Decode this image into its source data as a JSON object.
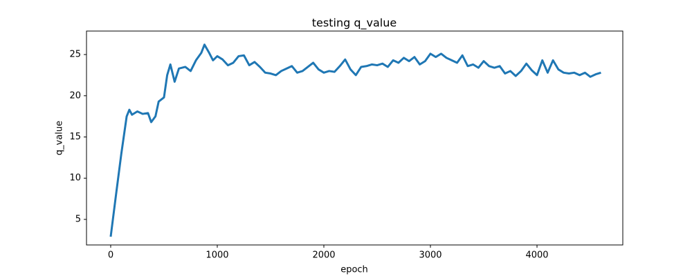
{
  "chart_data": {
    "type": "line",
    "title": "testing q_value",
    "x_label": "epoch",
    "y_label": "q_value",
    "x": [
      0,
      50,
      100,
      150,
      175,
      200,
      250,
      300,
      350,
      380,
      420,
      450,
      500,
      530,
      560,
      600,
      640,
      700,
      750,
      800,
      850,
      880,
      920,
      960,
      1000,
      1050,
      1100,
      1150,
      1200,
      1250,
      1300,
      1350,
      1400,
      1450,
      1500,
      1550,
      1600,
      1650,
      1700,
      1750,
      1800,
      1850,
      1900,
      1950,
      2000,
      2050,
      2100,
      2150,
      2200,
      2250,
      2300,
      2350,
      2400,
      2450,
      2500,
      2550,
      2600,
      2650,
      2700,
      2750,
      2800,
      2850,
      2900,
      2950,
      3000,
      3050,
      3100,
      3150,
      3200,
      3250,
      3300,
      3350,
      3400,
      3450,
      3500,
      3550,
      3600,
      3650,
      3700,
      3750,
      3800,
      3850,
      3900,
      3950,
      4000,
      4050,
      4100,
      4150,
      4200,
      4250,
      4300,
      4350,
      4400,
      4450,
      4500,
      4550,
      4600
    ],
    "series": [
      {
        "name": "q_value",
        "color": "#1f77b4",
        "values": [
          2.9,
          8,
          13,
          17.5,
          18.3,
          17.7,
          18.1,
          17.8,
          17.9,
          16.8,
          17.5,
          19.3,
          19.8,
          22.5,
          23.8,
          21.7,
          23.3,
          23.5,
          23.0,
          24.3,
          25.2,
          26.2,
          25.3,
          24.3,
          24.8,
          24.4,
          23.7,
          24.0,
          24.8,
          24.9,
          23.7,
          24.1,
          23.5,
          22.8,
          22.7,
          22.5,
          23.0,
          23.3,
          23.6,
          22.8,
          23.0,
          23.5,
          24.0,
          23.2,
          22.8,
          23.0,
          22.9,
          23.6,
          24.4,
          23.2,
          22.5,
          23.5,
          23.6,
          23.8,
          23.7,
          23.9,
          23.5,
          24.3,
          24.0,
          24.6,
          24.2,
          24.7,
          23.8,
          24.2,
          25.1,
          24.7,
          25.1,
          24.6,
          24.3,
          24.0,
          24.9,
          23.6,
          23.8,
          23.4,
          24.2,
          23.6,
          23.4,
          23.6,
          22.7,
          23.0,
          22.4,
          23.0,
          23.9,
          23.1,
          22.5,
          24.3,
          22.8,
          24.3,
          23.2,
          22.8,
          22.7,
          22.8,
          22.5,
          22.8,
          22.3,
          22.6,
          22.8
        ]
      }
    ],
    "xlim": [
      -227,
      4805
    ],
    "ylim": [
      1.9,
      27.85
    ],
    "xticks": [
      0,
      1000,
      2000,
      3000,
      4000
    ],
    "yticks": [
      5,
      10,
      15,
      20,
      25
    ]
  }
}
